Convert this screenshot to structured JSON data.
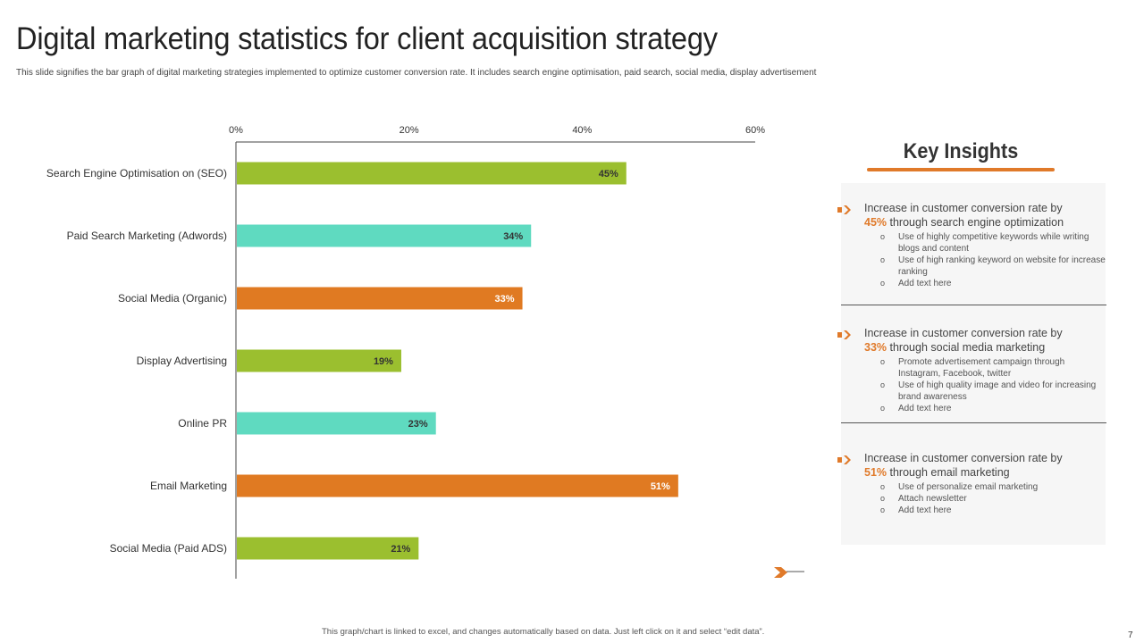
{
  "title": "Digital marketing statistics for client acquisition strategy",
  "subtitle": "This slide signifies the bar graph of digital marketing strategies implemented  to optimize customer conversion rate. It includes search engine optimisation,  paid search, social media,  display advertisement",
  "chart_data": {
    "type": "bar",
    "orientation": "horizontal",
    "title": "",
    "xlabel": "",
    "ylabel": "",
    "xlim": [
      0,
      60
    ],
    "ticks": [
      0,
      20,
      40,
      60
    ],
    "tick_labels": [
      "0%",
      "20%",
      "40%",
      "60%"
    ],
    "axis_position": "top",
    "grid": false,
    "categories": [
      "Search Engine Optimisation on (SEO)",
      "Paid Search Marketing (Adwords)",
      "Social Media (Organic)",
      "Display Advertising",
      "Online PR",
      "Email Marketing",
      "Social Media (Paid ADS)"
    ],
    "values": [
      45,
      34,
      33,
      19,
      23,
      51,
      21
    ],
    "value_labels": [
      "45%",
      "34%",
      "33%",
      "19%",
      "23%",
      "51%",
      "21%"
    ],
    "bar_colors": [
      "#9bbf2f",
      "#5fdac0",
      "#e07a22",
      "#9bbf2f",
      "#5fdac0",
      "#e07a22",
      "#9bbf2f"
    ],
    "label_colors": [
      "#333333",
      "#333333",
      "#ffffff",
      "#333333",
      "#333333",
      "#ffffff",
      "#333333"
    ]
  },
  "insights": {
    "title": "Key Insights",
    "accent": "#e07a2a",
    "items": [
      {
        "line1": "Increase in customer conversion  rate by",
        "pct": "45%",
        "rest": " through  search engine optimization",
        "bullets": [
          "Use of highly competitive keywords while writing blogs and content",
          "Use of high ranking keyword on website for increase ranking",
          "Add text here"
        ]
      },
      {
        "line1": "Increase in customer conversion  rate by",
        "pct": "33%",
        "rest": " through  social media marketing",
        "bullets": [
          "Promote advertisement campaign through Instagram, Facebook, twitter",
          "Use of high quality image and video for increasing brand awareness",
          "Add text here"
        ]
      },
      {
        "line1": "Increase in customer conversion  rate by",
        "pct": "51%",
        "rest": " through  email marketing",
        "bullets": [
          "Use of personalize email marketing",
          "Attach newsletter",
          "Add text here"
        ]
      }
    ]
  },
  "footer": "This graph/chart is linked to excel, and changes automatically based on data. Just left click on it and select “edit data”.",
  "page_number": "7"
}
